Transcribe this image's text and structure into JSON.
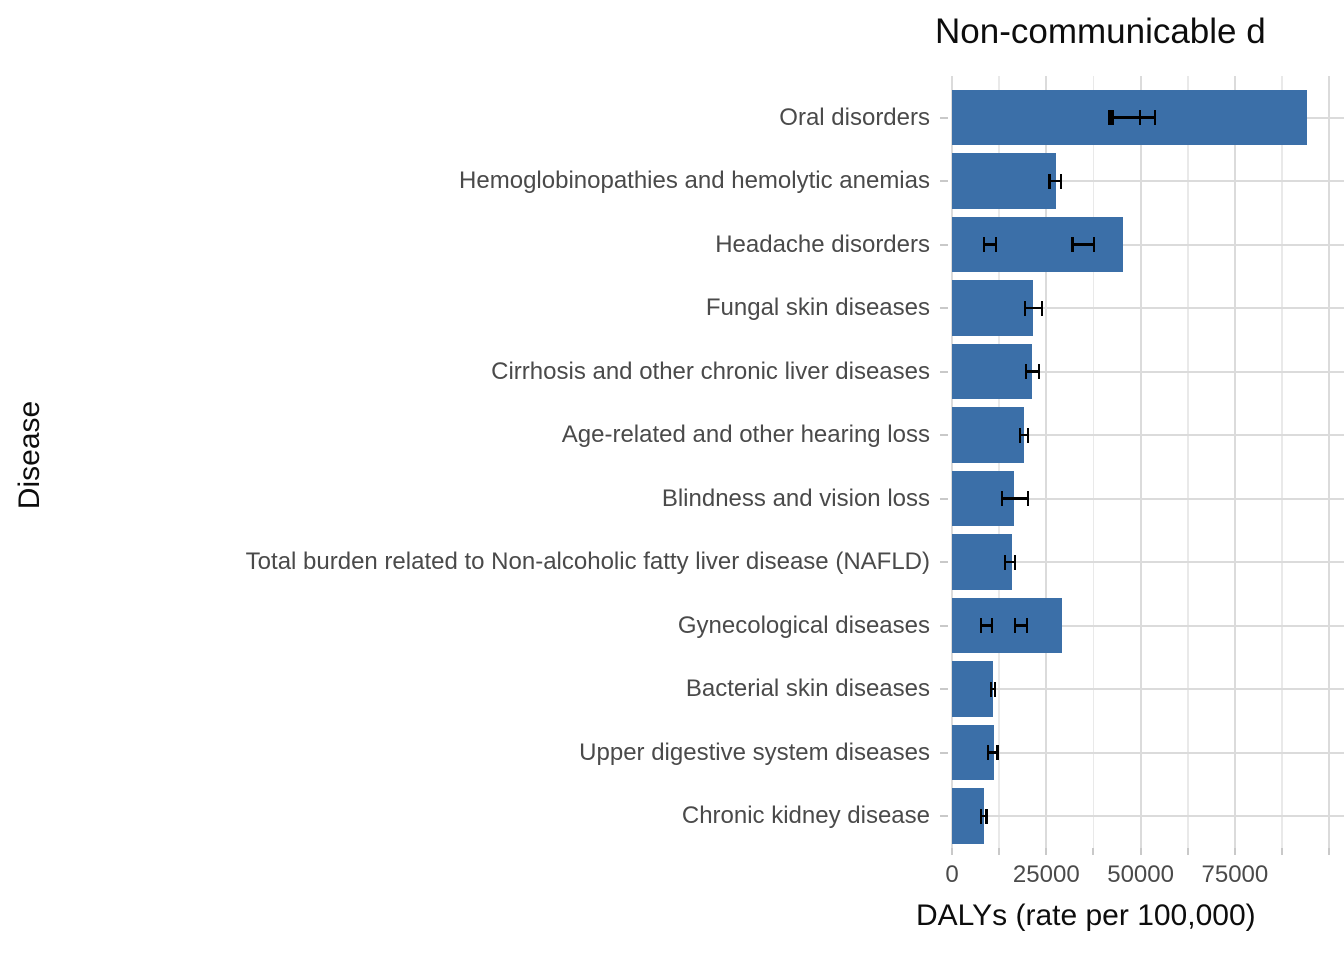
{
  "chart_data": {
    "type": "bar",
    "orientation": "horizontal",
    "title": "Non-communicable d",
    "xlabel": "DALYs (rate per 100,000)",
    "ylabel": "Disease",
    "x_major_ticks": [
      0,
      25000,
      50000,
      75000,
      100000
    ],
    "x_labeled_ticks": [
      0,
      25000,
      50000,
      75000
    ],
    "x_minor_ticks": [
      12500,
      37500,
      62500,
      87500
    ],
    "xlim": [
      0,
      103900
    ],
    "grid": true,
    "legend": "none",
    "bar_color": "#3b6fa8",
    "error_bar_color": "#000000",
    "grid_major_color": "#dbdbdb",
    "grid_minor_color": "#e9e9e9",
    "axis_text_color": "#4a4a4a",
    "categories": [
      "Oral disorders",
      "Hemoglobinopathies and hemolytic anemias",
      "Headache disorders",
      "Fungal skin diseases",
      "Cirrhosis and other chronic liver diseases",
      "Age-related and other hearing loss",
      "Blindness and vision loss",
      "Total burden related to Non-alcoholic fatty liver disease (NAFLD)",
      "Gynecological diseases",
      "Bacterial skin diseases",
      "Upper digestive system diseases",
      "Chronic kidney disease"
    ],
    "values": [
      94100,
      27500,
      45300,
      21400,
      21200,
      19100,
      16400,
      15900,
      29100,
      10900,
      11100,
      8500
    ],
    "error_bars": [
      [
        [
          41800,
          49800
        ],
        [
          42600,
          53800
        ]
      ],
      [
        [
          25900,
          28900
        ]
      ],
      [
        [
          8500,
          11700
        ],
        [
          32000,
          37600
        ]
      ],
      [
        [
          19300,
          23800
        ]
      ],
      [
        [
          19600,
          23000
        ]
      ],
      [
        [
          18000,
          20100
        ]
      ],
      [
        [
          13200,
          20100
        ]
      ],
      [
        [
          14000,
          16700
        ]
      ],
      [
        [
          7700,
          10600
        ],
        [
          16700,
          19900
        ]
      ],
      [
        [
          10300,
          11400
        ]
      ],
      [
        [
          9500,
          12100
        ]
      ],
      [
        [
          7700,
          9200
        ]
      ]
    ]
  }
}
